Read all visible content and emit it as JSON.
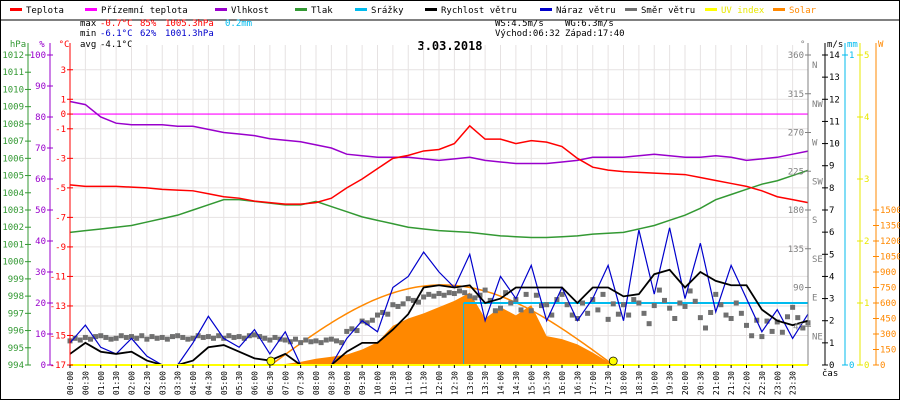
{
  "chart_data": {
    "type": "line",
    "title": "3.03.2018",
    "legend_placement": "top",
    "legend": [
      {
        "name": "Teplota",
        "color": "#ff0000"
      },
      {
        "name": "Přízemní teplota",
        "color": "#ff00ff"
      },
      {
        "name": "Vlhkost",
        "color": "#9900cc"
      },
      {
        "name": "Tlak",
        "color": "#339933"
      },
      {
        "name": "Srážky",
        "color": "#00bbee"
      },
      {
        "name": "Rychlost větru",
        "color": "#000000"
      },
      {
        "name": "Náraz větru",
        "color": "#0000cc"
      },
      {
        "name": "Směr větru",
        "color": "#707070"
      },
      {
        "name": "UV index",
        "color": "#ffff00"
      },
      {
        "name": "Solar",
        "color": "#ff8800"
      }
    ],
    "stats": {
      "max_label": "max",
      "max_temp": "-0.7°C",
      "max_hum": "85%",
      "max_press": "1005.3hPa",
      "max_rain": "0.2mm",
      "min_label": "min",
      "min_temp": "-6.1°C",
      "min_hum": "62%",
      "min_press": "1001.3hPa",
      "avg_label": "avg",
      "avg_temp": "-4.1°C",
      "ws": "WS:4.5m/s",
      "wg": "WG:6.3m/s",
      "sunrise": "Východ:06:32",
      "sunset": "Západ:17:40"
    },
    "xlabel": "čas",
    "x_ticks": [
      "00:00",
      "00:30",
      "01:00",
      "01:30",
      "02:00",
      "02:30",
      "03:00",
      "03:30",
      "04:00",
      "04:30",
      "05:00",
      "05:30",
      "06:00",
      "06:30",
      "07:00",
      "07:30",
      "08:00",
      "08:30",
      "09:00",
      "09:30",
      "10:00",
      "10:30",
      "11:00",
      "11:30",
      "12:00",
      "12:30",
      "13:00",
      "13:30",
      "14:00",
      "14:30",
      "15:00",
      "15:30",
      "16:00",
      "16:30",
      "17:00",
      "17:30",
      "18:00",
      "18:30",
      "19:00",
      "19:30",
      "20:00",
      "20:30",
      "21:00",
      "21:30",
      "22:00",
      "22:30",
      "23:00",
      "23:30"
    ],
    "axes": {
      "hpa": {
        "unit": "hPa",
        "range": [
          994,
          1012
        ],
        "ticks": [
          "1012",
          "1011",
          "1010",
          "1009",
          "1008",
          "1007",
          "1006",
          "1005",
          "1004",
          "1003",
          "1002",
          "1001",
          "1000",
          "999",
          "998",
          "997",
          "996",
          "995",
          "994"
        ]
      },
      "hum": {
        "unit": "%",
        "range": [
          0,
          100
        ],
        "ticks": [
          "100",
          "90",
          "80",
          "70",
          "60",
          "50",
          "40",
          "30",
          "20",
          "10",
          "0"
        ]
      },
      "temp": {
        "unit": "°C",
        "range": [
          -17,
          4
        ],
        "ticks": [
          "3",
          "1",
          "0",
          "-1",
          "-3",
          "-5",
          "-7",
          "-9",
          "-11",
          "-13",
          "-15",
          "-17"
        ]
      },
      "dir": {
        "unit": "°",
        "range": [
          0,
          360
        ],
        "ticks": [
          {
            "v": "360",
            "d": "N"
          },
          {
            "v": "315",
            "d": "NW"
          },
          {
            "v": "270",
            "d": "W"
          },
          {
            "v": "225",
            "d": "SW"
          },
          {
            "v": "180",
            "d": "S"
          },
          {
            "v": "135",
            "d": "SE"
          },
          {
            "v": "90",
            "d": "E"
          },
          {
            "v": "45",
            "d": "NE"
          }
        ]
      },
      "wind": {
        "unit": "m/s",
        "range": [
          0,
          14
        ],
        "ticks": [
          "14",
          "13",
          "12",
          "11",
          "10",
          "9",
          "8",
          "7",
          "6",
          "5",
          "4",
          "3",
          "2",
          "1",
          "0"
        ]
      },
      "rain": {
        "unit": "mm",
        "range": [
          0,
          1
        ],
        "ticks": [
          "1",
          "0"
        ]
      },
      "uv": {
        "unit": "",
        "range": [
          0,
          5
        ],
        "ticks": [
          "5",
          "4",
          "3",
          "2",
          "1",
          "0"
        ]
      },
      "solar": {
        "unit": "W",
        "range": [
          0,
          3000
        ],
        "ticks": [
          "1500",
          "1350",
          "1200",
          "1050",
          "900",
          "750",
          "600",
          "450",
          "300",
          "150",
          "0"
        ]
      }
    },
    "series": {
      "hours": [
        0,
        0.5,
        1,
        1.5,
        2,
        2.5,
        3,
        3.5,
        4,
        4.5,
        5,
        5.5,
        6,
        6.5,
        7,
        7.5,
        8,
        8.5,
        9,
        9.5,
        10,
        10.5,
        11,
        11.5,
        12,
        12.5,
        13,
        13.5,
        14,
        14.5,
        15,
        15.5,
        16,
        16.5,
        17,
        17.5,
        18,
        18.5,
        19,
        19.5,
        20,
        20.5,
        21,
        21.5,
        22,
        22.5,
        23,
        23.5,
        24
      ],
      "temperature": [
        -4.8,
        -4.9,
        -4.9,
        -4.9,
        -4.95,
        -5.0,
        -5.1,
        -5.15,
        -5.2,
        -5.4,
        -5.6,
        -5.7,
        -5.9,
        -6.0,
        -6.1,
        -6.1,
        -6.0,
        -5.7,
        -5.0,
        -4.4,
        -3.7,
        -3.0,
        -2.8,
        -2.5,
        -2.4,
        -2.0,
        -0.8,
        -1.7,
        -1.7,
        -2.0,
        -1.8,
        -1.9,
        -2.2,
        -3.0,
        -3.6,
        -3.8,
        -3.9,
        -3.95,
        -4.0,
        -4.05,
        -4.1,
        -4.3,
        -4.5,
        -4.7,
        -4.9,
        -5.2,
        -5.6,
        -5.8,
        -6.0
      ],
      "apparent_temperature": [
        0,
        0,
        0,
        0,
        0,
        0,
        0,
        0,
        0,
        0,
        0,
        0,
        0,
        0,
        0,
        0,
        0,
        0,
        0,
        0,
        0,
        0,
        0,
        0,
        0,
        0,
        0,
        0,
        0,
        0,
        0,
        0,
        0,
        0,
        0,
        0,
        0,
        0,
        0,
        0,
        0,
        0,
        0,
        0,
        0,
        0,
        0,
        0,
        0
      ],
      "humidity": [
        85,
        84,
        80,
        78,
        77.5,
        77.5,
        77.5,
        77,
        77,
        76,
        75,
        74.5,
        74,
        73,
        72.5,
        72,
        71,
        70,
        68,
        67.5,
        67,
        67,
        67,
        66.5,
        66,
        66.5,
        67,
        66,
        65.5,
        65,
        65,
        65,
        65.5,
        66,
        67,
        67,
        67,
        67.5,
        68,
        67.5,
        67,
        67,
        67.5,
        67,
        66,
        66.5,
        67,
        68,
        69
      ],
      "pressure": [
        1001.7,
        1001.8,
        1001.9,
        1002.0,
        1002.1,
        1002.3,
        1002.5,
        1002.7,
        1003.0,
        1003.3,
        1003.6,
        1003.6,
        1003.5,
        1003.4,
        1003.3,
        1003.3,
        1003.5,
        1003.2,
        1002.9,
        1002.6,
        1002.4,
        1002.2,
        1002.0,
        1001.9,
        1001.8,
        1001.75,
        1001.7,
        1001.6,
        1001.5,
        1001.45,
        1001.4,
        1001.4,
        1001.45,
        1001.5,
        1001.6,
        1001.65,
        1001.7,
        1001.9,
        1002.1,
        1002.4,
        1002.7,
        1003.1,
        1003.6,
        1003.9,
        1004.2,
        1004.5,
        1004.7,
        1005.0,
        1005.3
      ],
      "wind_speed": [
        0.5,
        1.0,
        0.6,
        0.5,
        0.6,
        0.2,
        0,
        0,
        0.2,
        0.8,
        0.9,
        0.6,
        0.3,
        0.2,
        0.5,
        0,
        0,
        0,
        0.6,
        1.0,
        1.0,
        1.6,
        2.3,
        3.5,
        3.6,
        3.5,
        3.6,
        2.8,
        3.0,
        3.5,
        3.5,
        3.5,
        3.5,
        2.8,
        3.5,
        3.5,
        3.1,
        3.2,
        4.1,
        4.3,
        3.5,
        4.2,
        3.8,
        3.6,
        3.6,
        2.5,
        2.0,
        1.8,
        2.0
      ],
      "wind_gust": [
        1.0,
        1.8,
        0.8,
        0.5,
        1.2,
        0.4,
        0,
        0,
        1.0,
        2.2,
        1.2,
        0.8,
        1.6,
        0.5,
        1.5,
        0,
        0,
        0,
        1.2,
        2.0,
        1.5,
        3.5,
        4.0,
        5.1,
        4.2,
        3.5,
        5.0,
        2.0,
        4.0,
        3.0,
        4.5,
        2.0,
        3.5,
        2.0,
        3.0,
        4.5,
        2.0,
        6.1,
        3.2,
        6.2,
        3.0,
        5.5,
        2.4,
        4.5,
        3.0,
        1.5,
        2.5,
        1.2,
        2.3
      ],
      "wind_dir": [
        30,
        32,
        32,
        32,
        32,
        32,
        32,
        32,
        32,
        32,
        33,
        33,
        33,
        30,
        28,
        28,
        28,
        28,
        40,
        50,
        60,
        70,
        75,
        80,
        82,
        85,
        80,
        75,
        72,
        70,
        75,
        70,
        70,
        60,
        70,
        65,
        70,
        60,
        75,
        60,
        80,
        55,
        70,
        60,
        40,
        45,
        50,
        55,
        55
      ],
      "solar": [
        0,
        0,
        0,
        0,
        0,
        0,
        0,
        0,
        0,
        0,
        0,
        0,
        0,
        0,
        10,
        30,
        60,
        80,
        100,
        150,
        220,
        380,
        450,
        500,
        560,
        620,
        700,
        450,
        560,
        480,
        580,
        280,
        250,
        200,
        120,
        30,
        0,
        0,
        0,
        0,
        0,
        0,
        0,
        0,
        0,
        0,
        0,
        0,
        0
      ],
      "solar_theoretical_peak": 775,
      "rain_mm": 0.2,
      "rain_start_hour": 12.8,
      "uv": 0
    }
  }
}
